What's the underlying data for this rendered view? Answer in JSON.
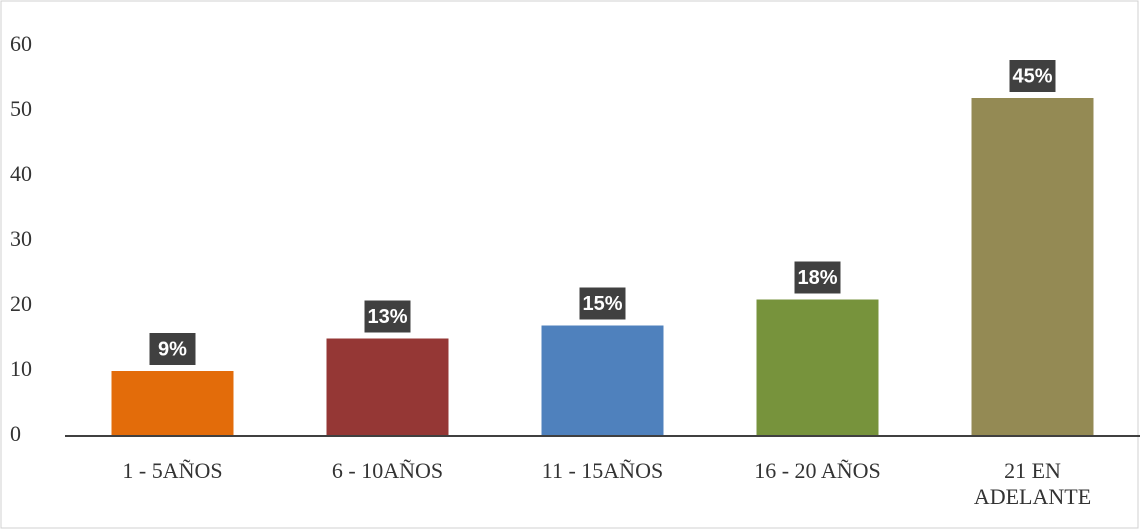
{
  "chart_data": {
    "type": "bar",
    "categories": [
      "1 - 5AÑOS",
      "6 - 10AÑOS",
      "11 - 15AÑOS",
      "16 - 20 AÑOS",
      "21 EN ADELANTE"
    ],
    "values": [
      10,
      15,
      17,
      21,
      52
    ],
    "data_labels": [
      {
        "value": 9,
        "label": "9%"
      },
      {
        "value": 13,
        "label": "13%"
      },
      {
        "value": 15,
        "label": "15%"
      },
      {
        "value": 18,
        "label": "18%"
      },
      {
        "value": 45,
        "label": "45%"
      }
    ],
    "colors": [
      "#e36c0a",
      "#953735",
      "#4f81bd",
      "#77933c",
      "#948a54"
    ],
    "ylim": [
      0,
      60
    ],
    "yticks": [
      0,
      10,
      20,
      30,
      40,
      50,
      60
    ],
    "grid": false
  }
}
